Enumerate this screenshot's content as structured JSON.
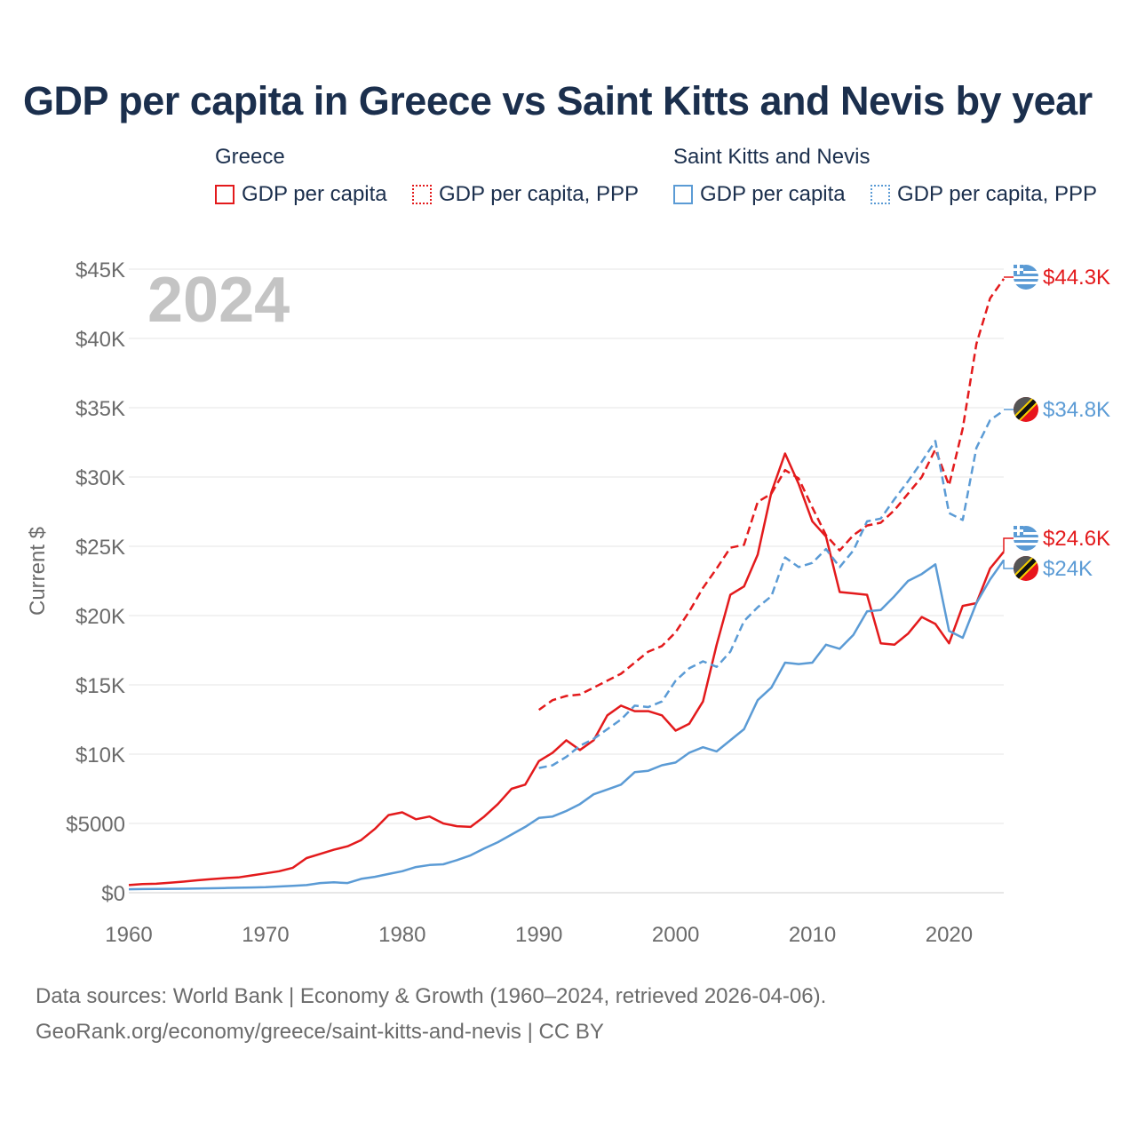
{
  "title": "GDP per capita in Greece vs Saint Kitts and Nevis by year",
  "legend": {
    "groups": [
      {
        "name": "Greece",
        "items": [
          {
            "label": "GDP per capita",
            "color": "#e31a1c",
            "style": "solid"
          },
          {
            "label": "GDP per capita, PPP",
            "color": "#e31a1c",
            "style": "dotted"
          }
        ]
      },
      {
        "name": "Saint Kitts and Nevis",
        "items": [
          {
            "label": "GDP per capita",
            "color": "#5b9bd5",
            "style": "solid"
          },
          {
            "label": "GDP per capita, PPP",
            "color": "#5b9bd5",
            "style": "dotted"
          }
        ]
      }
    ]
  },
  "year_watermark": "2024",
  "footer": {
    "line1": "Data sources: World Bank | Economy & Growth (1960–2024, retrieved 2026-04-06).",
    "line2": "GeoRank.org/economy/greece/saint-kitts-and-nevis | CC BY"
  },
  "chart_data": {
    "type": "line",
    "title": "GDP per capita in Greece vs Saint Kitts and Nevis by year",
    "xlabel": "",
    "ylabel": "Current $",
    "xlim": [
      1960,
      2024
    ],
    "ylim": [
      0,
      45000
    ],
    "grid": true,
    "x_ticks": [
      1960,
      1970,
      1980,
      1990,
      2000,
      2010,
      2020
    ],
    "x_tick_labels": [
      "1960",
      "1970",
      "1980",
      "1990",
      "2000",
      "2010",
      "2020"
    ],
    "y_ticks": [
      0,
      5000,
      10000,
      15000,
      20000,
      25000,
      30000,
      35000,
      40000,
      45000
    ],
    "y_tick_labels": [
      "$0",
      "$5000",
      "$10K",
      "$15K",
      "$20K",
      "$25K",
      "$30K",
      "$35K",
      "$40K",
      "$45K"
    ],
    "series": [
      {
        "name": "Greece GDP per capita",
        "country": "Greece",
        "color": "#e31a1c",
        "dash": "solid",
        "x": [
          1960,
          1961,
          1962,
          1963,
          1964,
          1965,
          1966,
          1967,
          1968,
          1969,
          1970,
          1971,
          1972,
          1973,
          1974,
          1975,
          1976,
          1977,
          1978,
          1979,
          1980,
          1981,
          1982,
          1983,
          1984,
          1985,
          1986,
          1987,
          1988,
          1989,
          1990,
          1991,
          1992,
          1993,
          1994,
          1995,
          1996,
          1997,
          1998,
          1999,
          2000,
          2001,
          2002,
          2003,
          2004,
          2005,
          2006,
          2007,
          2008,
          2009,
          2010,
          2011,
          2012,
          2013,
          2014,
          2015,
          2016,
          2017,
          2018,
          2019,
          2020,
          2021,
          2022,
          2023,
          2024
        ],
        "values": [
          550,
          620,
          650,
          720,
          800,
          900,
          980,
          1050,
          1100,
          1250,
          1400,
          1550,
          1800,
          2500,
          2800,
          3100,
          3350,
          3800,
          4600,
          5600,
          5800,
          5300,
          5500,
          5000,
          4800,
          4750,
          5500,
          6400,
          7500,
          7800,
          9500,
          10100,
          11000,
          10300,
          11000,
          12800,
          13500,
          13100,
          13100,
          12800,
          11700,
          12200,
          13800,
          17900,
          21500,
          22100,
          24400,
          28900,
          31700,
          29500,
          26800,
          25700,
          21700,
          21600,
          21500,
          18000,
          17900,
          18700,
          19900,
          19400,
          18000,
          20700,
          20900,
          23400,
          24600
        ],
        "end_label": "$24.6K"
      },
      {
        "name": "Greece GDP per capita, PPP",
        "country": "Greece",
        "color": "#e31a1c",
        "dash": "dashed",
        "x": [
          1990,
          1991,
          1992,
          1993,
          1994,
          1995,
          1996,
          1997,
          1998,
          1999,
          2000,
          2001,
          2002,
          2003,
          2004,
          2005,
          2006,
          2007,
          2008,
          2009,
          2010,
          2011,
          2012,
          2013,
          2014,
          2015,
          2016,
          2017,
          2018,
          2019,
          2020,
          2021,
          2022,
          2023,
          2024
        ],
        "values": [
          13200,
          13900,
          14200,
          14300,
          14800,
          15300,
          15800,
          16600,
          17400,
          17800,
          18800,
          20300,
          22000,
          23400,
          24900,
          25100,
          28200,
          28800,
          30500,
          29900,
          27800,
          25800,
          24700,
          25800,
          26500,
          26700,
          27600,
          28800,
          30000,
          32000,
          29400,
          33500,
          39600,
          42900,
          44300
        ],
        "end_label": "$44.3K"
      },
      {
        "name": "Saint Kitts and Nevis GDP per capita",
        "country": "Saint Kitts and Nevis",
        "color": "#5b9bd5",
        "dash": "solid",
        "x": [
          1960,
          1961,
          1962,
          1963,
          1964,
          1965,
          1966,
          1967,
          1968,
          1969,
          1970,
          1971,
          1972,
          1973,
          1974,
          1975,
          1976,
          1977,
          1978,
          1979,
          1980,
          1981,
          1982,
          1983,
          1984,
          1985,
          1986,
          1987,
          1988,
          1989,
          1990,
          1991,
          1992,
          1993,
          1994,
          1995,
          1996,
          1997,
          1998,
          1999,
          2000,
          2001,
          2002,
          2003,
          2004,
          2005,
          2006,
          2007,
          2008,
          2009,
          2010,
          2011,
          2012,
          2013,
          2014,
          2015,
          2016,
          2017,
          2018,
          2019,
          2020,
          2021,
          2022,
          2023,
          2024
        ],
        "values": [
          250,
          260,
          270,
          280,
          290,
          300,
          320,
          340,
          360,
          380,
          400,
          450,
          500,
          550,
          700,
          750,
          700,
          1000,
          1150,
          1350,
          1550,
          1850,
          2000,
          2050,
          2350,
          2700,
          3200,
          3650,
          4200,
          4750,
          5400,
          5500,
          5900,
          6400,
          7100,
          7450,
          7800,
          8700,
          8800,
          9200,
          9400,
          10100,
          10500,
          10200,
          11000,
          11800,
          13900,
          14800,
          16600,
          16500,
          16600,
          17900,
          17600,
          18600,
          20300,
          20400,
          21400,
          22500,
          23000,
          23700,
          18900,
          18400,
          20900,
          22600,
          24000
        ],
        "end_label": "$24K"
      },
      {
        "name": "Saint Kitts and Nevis GDP per capita, PPP",
        "country": "Saint Kitts and Nevis",
        "color": "#5b9bd5",
        "dash": "dashed",
        "x": [
          1990,
          1991,
          1992,
          1993,
          1994,
          1995,
          1996,
          1997,
          1998,
          1999,
          2000,
          2001,
          2002,
          2003,
          2004,
          2005,
          2006,
          2007,
          2008,
          2009,
          2010,
          2011,
          2012,
          2013,
          2014,
          2015,
          2016,
          2017,
          2018,
          2019,
          2020,
          2021,
          2022,
          2023,
          2024
        ],
        "values": [
          9000,
          9200,
          9800,
          10600,
          11100,
          11800,
          12500,
          13500,
          13400,
          13800,
          15300,
          16200,
          16700,
          16300,
          17400,
          19600,
          20600,
          21400,
          24200,
          23500,
          23800,
          24800,
          23500,
          24700,
          26800,
          27000,
          28400,
          29700,
          31100,
          32600,
          27400,
          26900,
          32100,
          34100,
          34800
        ],
        "end_label": "$34.8K"
      }
    ]
  }
}
